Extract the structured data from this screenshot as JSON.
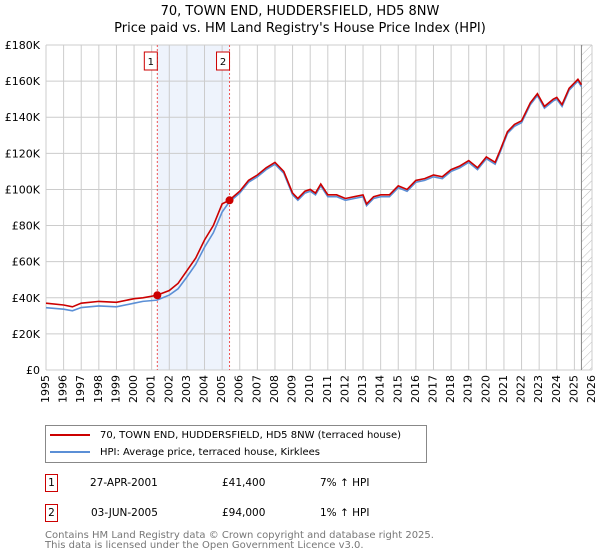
{
  "chart_data": {
    "type": "line",
    "title": "70, TOWN END, HUDDERSFIELD, HD5 8NW",
    "subtitle": "Price paid vs. HM Land Registry's House Price Index (HPI)",
    "xlim": [
      1995,
      2026
    ],
    "ylim": [
      0,
      180000
    ],
    "x_ticks": [
      "1995",
      "1996",
      "1997",
      "1998",
      "1999",
      "2000",
      "2001",
      "2002",
      "2003",
      "2004",
      "2005",
      "2006",
      "2007",
      "2008",
      "2009",
      "2010",
      "2011",
      "2012",
      "2013",
      "2014",
      "2015",
      "2016",
      "2017",
      "2018",
      "2019",
      "2020",
      "2021",
      "2022",
      "2023",
      "2024",
      "2025",
      "2026"
    ],
    "y_ticks": [
      {
        "v": 0,
        "label": "£0"
      },
      {
        "v": 20000,
        "label": "£20K"
      },
      {
        "v": 40000,
        "label": "£40K"
      },
      {
        "v": 60000,
        "label": "£60K"
      },
      {
        "v": 80000,
        "label": "£80K"
      },
      {
        "v": 100000,
        "label": "£100K"
      },
      {
        "v": 120000,
        "label": "£120K"
      },
      {
        "v": 140000,
        "label": "£140K"
      },
      {
        "v": 160000,
        "label": "£160K"
      },
      {
        "v": 180000,
        "label": "£180K"
      }
    ],
    "grid": true,
    "data_end": 2025.4,
    "series": [
      {
        "name": "70, TOWN END, HUDDERSFIELD, HD5 8NW (terraced house)",
        "color": "#cc0000",
        "x": [
          1995,
          1996,
          1996.5,
          1997,
          1998,
          1999,
          2000,
          2000.5,
          2001.3,
          2002,
          2002.5,
          2003,
          2003.5,
          2004,
          2004.5,
          2005,
          2005.4,
          2006,
          2006.5,
          2007,
          2007.5,
          2008,
          2008.5,
          2009,
          2009.3,
          2009.7,
          2010,
          2010.3,
          2010.6,
          2011,
          2011.5,
          2012,
          2012.5,
          2013,
          2013.2,
          2013.6,
          2014,
          2014.5,
          2015,
          2015.5,
          2016,
          2016.5,
          2017,
          2017.5,
          2018,
          2018.5,
          2019,
          2019.5,
          2020,
          2020.5,
          2020.8,
          2021.2,
          2021.6,
          2022,
          2022.5,
          2022.9,
          2023.3,
          2023.8,
          2024,
          2024.3,
          2024.7,
          2025,
          2025.2,
          2025.4
        ],
        "y": [
          37000,
          36000,
          35000,
          37000,
          38000,
          37500,
          39500,
          40000,
          41400,
          44000,
          48000,
          55000,
          62000,
          72000,
          80000,
          92000,
          94000,
          99000,
          105000,
          108000,
          112000,
          115000,
          110000,
          98000,
          95000,
          99000,
          100000,
          98000,
          103000,
          97000,
          97000,
          95000,
          96000,
          97000,
          92000,
          96000,
          97000,
          97000,
          102000,
          100000,
          105000,
          106000,
          108000,
          107000,
          111000,
          113000,
          116000,
          112000,
          118000,
          115000,
          122000,
          132000,
          136000,
          138000,
          148000,
          153000,
          146000,
          150000,
          151000,
          147000,
          156000,
          159000,
          161000,
          158000
        ]
      },
      {
        "name": "HPI: Average price, terraced house, Kirklees",
        "color": "#5b8fd6",
        "x": [
          1995,
          1996,
          1996.5,
          1997,
          1998,
          1999,
          2000,
          2000.5,
          2001.3,
          2002,
          2002.5,
          2003,
          2003.5,
          2004,
          2004.5,
          2005,
          2005.4,
          2006,
          2006.5,
          2007,
          2007.5,
          2008,
          2008.5,
          2009,
          2009.3,
          2009.7,
          2010,
          2010.3,
          2010.6,
          2011,
          2011.5,
          2012,
          2012.5,
          2013,
          2013.2,
          2013.6,
          2014,
          2014.5,
          2015,
          2015.5,
          2016,
          2016.5,
          2017,
          2017.5,
          2018,
          2018.5,
          2019,
          2019.5,
          2020,
          2020.5,
          2020.8,
          2021.2,
          2021.6,
          2022,
          2022.5,
          2022.9,
          2023.3,
          2023.8,
          2024,
          2024.3,
          2024.7,
          2025,
          2025.2,
          2025.4
        ],
        "y": [
          34500,
          33700,
          32800,
          34600,
          35500,
          35000,
          37000,
          38000,
          38700,
          41500,
          45000,
          51500,
          58500,
          68000,
          76000,
          87500,
          93000,
          98000,
          104000,
          107000,
          111000,
          114000,
          109000,
          97000,
          94000,
          98000,
          99000,
          97000,
          102000,
          96000,
          96000,
          94000,
          95000,
          96000,
          91000,
          95000,
          96000,
          96000,
          101000,
          99000,
          104000,
          105000,
          107000,
          106000,
          110000,
          112000,
          115000,
          111000,
          117000,
          114000,
          121000,
          131000,
          135000,
          137000,
          147000,
          152000,
          145000,
          149000,
          150000,
          146000,
          155000,
          158000,
          160000,
          157000
        ]
      }
    ],
    "annotations": [
      {
        "label": "1",
        "x": 2001.32,
        "y": 41400
      },
      {
        "label": "2",
        "x": 2005.42,
        "y": 94000
      }
    ]
  },
  "transactions": [
    {
      "n": "1",
      "date": "27-APR-2001",
      "price": "£41,400",
      "hpi": "7% ↑ HPI"
    },
    {
      "n": "2",
      "date": "03-JUN-2005",
      "price": "£94,000",
      "hpi": "1% ↑ HPI"
    }
  ],
  "footer": {
    "line1": "Contains HM Land Registry data © Crown copyright and database right 2025.",
    "line2": "This data is licensed under the Open Government Licence v3.0."
  }
}
